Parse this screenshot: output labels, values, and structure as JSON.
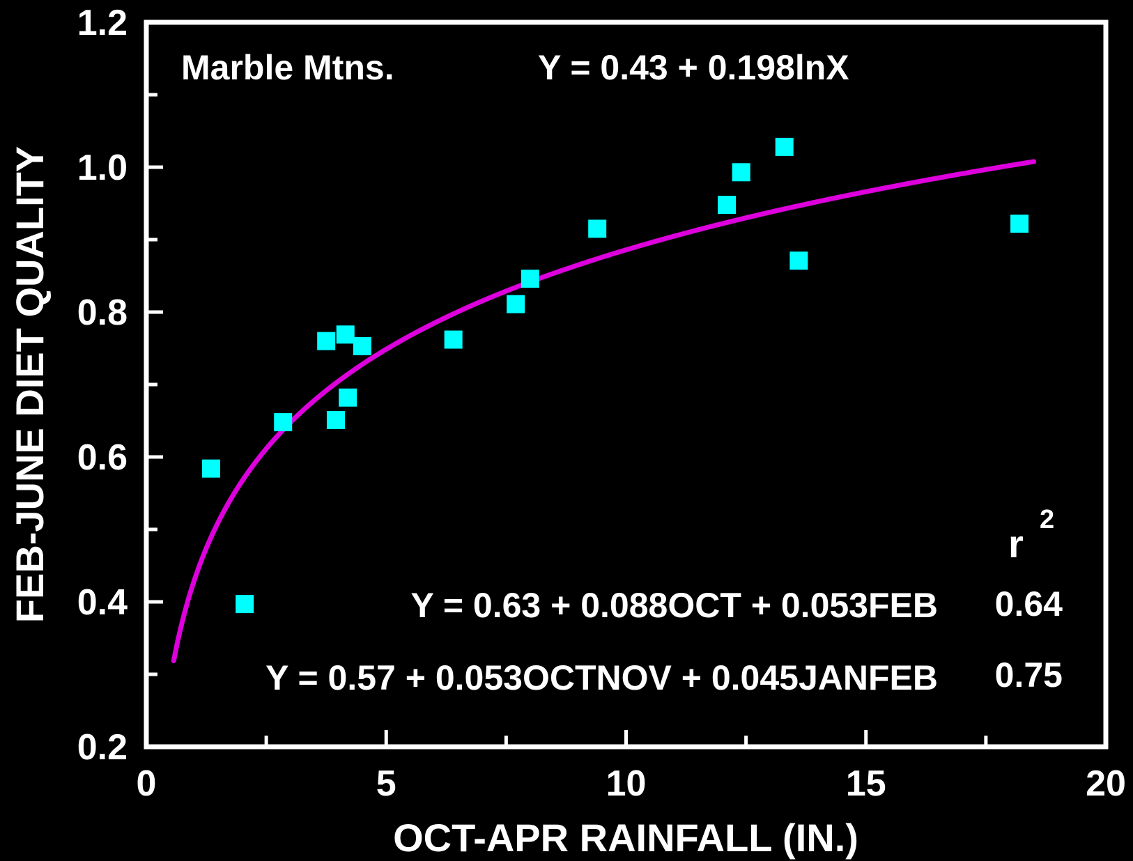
{
  "chart_data": {
    "type": "scatter",
    "title": "",
    "xlabel": "OCT-APR RAINFALL (IN.)",
    "ylabel": "FEB-JUNE DIET QUALITY",
    "xlim": [
      0,
      20
    ],
    "ylim": [
      0.2,
      1.2
    ],
    "x_ticks": [
      "0",
      "5",
      "10",
      "15",
      "20"
    ],
    "y_ticks": [
      "0.2",
      "0.4",
      "0.6",
      "0.8",
      "1.0",
      "1.2"
    ],
    "grid": false,
    "legend": "none",
    "colors": {
      "background": "#000000",
      "axes": "#ffffff",
      "points": "#00ffff",
      "fit_line": "#dd00dd"
    },
    "series": [
      {
        "kind": "points",
        "x": [
          1.35,
          2.05,
          2.85,
          3.75,
          3.95,
          4.15,
          4.2,
          4.5,
          6.4,
          7.7,
          8.0,
          9.4,
          12.1,
          12.4,
          13.3,
          13.6,
          18.2
        ],
        "y": [
          0.584,
          0.397,
          0.648,
          0.76,
          0.651,
          0.769,
          0.682,
          0.753,
          0.762,
          0.811,
          0.846,
          0.915,
          0.948,
          0.993,
          1.028,
          0.871,
          0.922
        ]
      },
      {
        "kind": "fit",
        "equation": "0.43 + 0.198 ln(x)",
        "x_range": [
          0.57,
          18.5
        ]
      }
    ],
    "annotations": {
      "site": "Marble Mtns.",
      "fit_eq": "Y = 0.43 + 0.198lnX",
      "r2_label": "r",
      "r2_sup": "2",
      "eq1": "Y = 0.63 + 0.088OCT + 0.053FEB",
      "r2_1": "0.64",
      "eq2": "Y = 0.57 + 0.053OCTNOV + 0.045JANFEB",
      "r2_2": "0.75"
    }
  }
}
